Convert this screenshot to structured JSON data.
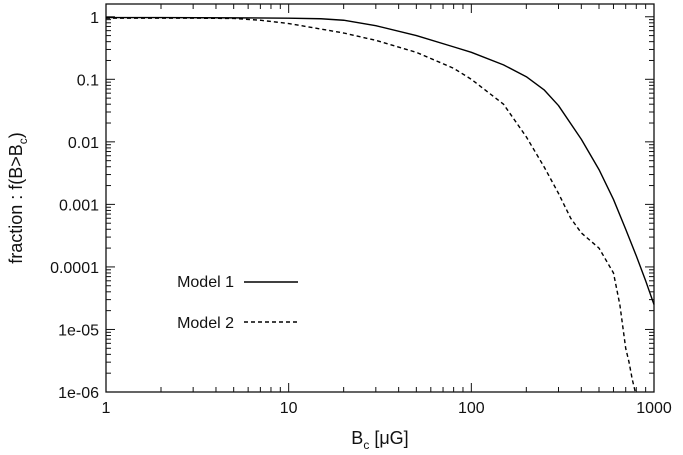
{
  "chart_data": {
    "type": "line",
    "xlabel": "B",
    "xlabel_sub": "c",
    "xlabel_unit": "[μG]",
    "ylabel_prefix": "fraction : f(B>B",
    "ylabel_sub": "c",
    "ylabel_suffix": ")",
    "xscale": "log",
    "yscale": "log",
    "xlim": [
      1,
      1000
    ],
    "ylim": [
      1e-06,
      1.6
    ],
    "grid": false,
    "legend_position": "lower-left",
    "x_ticks": [
      {
        "value": 1,
        "label": "1"
      },
      {
        "value": 10,
        "label": "10"
      },
      {
        "value": 100,
        "label": "100"
      },
      {
        "value": 1000,
        "label": "1000"
      }
    ],
    "y_ticks": [
      {
        "value": 1,
        "label": "1"
      },
      {
        "value": 0.1,
        "label": "0.1"
      },
      {
        "value": 0.01,
        "label": "0.01"
      },
      {
        "value": 0.001,
        "label": "0.001"
      },
      {
        "value": 0.0001,
        "label": "0.0001"
      },
      {
        "value": 1e-05,
        "label": "1e-05"
      },
      {
        "value": 1e-06,
        "label": "1e-06"
      }
    ],
    "series": [
      {
        "name": "Model 1",
        "dash": "solid",
        "color": "#000000",
        "x": [
          1,
          2,
          5,
          10,
          15,
          20,
          30,
          50,
          80,
          100,
          150,
          200,
          250,
          300,
          400,
          500,
          600,
          700,
          800,
          900,
          1000
        ],
        "y": [
          0.97,
          0.97,
          0.96,
          0.95,
          0.93,
          0.88,
          0.72,
          0.5,
          0.33,
          0.27,
          0.17,
          0.11,
          0.068,
          0.038,
          0.011,
          0.0036,
          0.0012,
          0.0004,
          0.00015,
          6e-05,
          2.5e-05
        ]
      },
      {
        "name": "Model 2",
        "dash": "dashed",
        "color": "#000000",
        "x": [
          1,
          3,
          5,
          7,
          10,
          20,
          30,
          50,
          80,
          100,
          150,
          200,
          250,
          300,
          350,
          400,
          500,
          600,
          650,
          700,
          730,
          760,
          790
        ],
        "y": [
          0.95,
          0.95,
          0.94,
          0.88,
          0.78,
          0.55,
          0.42,
          0.27,
          0.15,
          0.1,
          0.04,
          0.012,
          0.004,
          0.0015,
          0.0006,
          0.00035,
          0.0002,
          8e-05,
          2.5e-05,
          5e-06,
          3e-06,
          1.6e-06,
          1e-06
        ]
      }
    ],
    "legend": [
      {
        "label": "Model 1",
        "dash": "solid"
      },
      {
        "label": "Model 2",
        "dash": "dashed"
      }
    ]
  }
}
